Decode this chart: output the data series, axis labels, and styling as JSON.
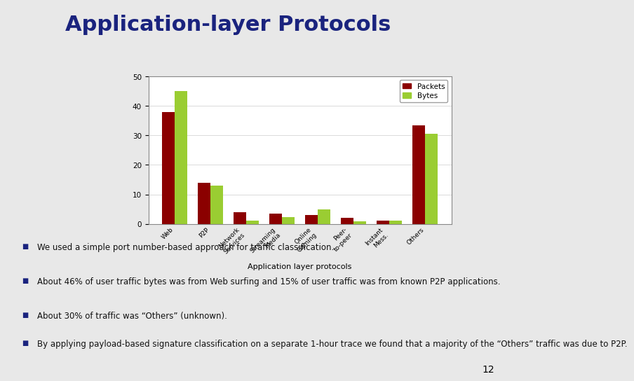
{
  "title": "Application-layer Protocols",
  "slide_bg": "#e8e8e8",
  "title_color": "#1a237e",
  "title_fontsize": 22,
  "xlabel": "Application layer protocols",
  "ylabel": "",
  "ylim": [
    0,
    50
  ],
  "yticks": [
    0,
    10,
    20,
    30,
    40,
    50
  ],
  "categories": [
    "Web",
    "P2P",
    "Network\nServices",
    "Streaming\nMedia",
    "Online\nGaming",
    "Peer-\nto-peer",
    "Instant\nMess.",
    "Others"
  ],
  "packets": [
    38,
    14,
    4,
    3.5,
    3,
    2,
    1,
    33.5
  ],
  "bytes": [
    45,
    13,
    1.2,
    2.2,
    4.8,
    0.8,
    1.2,
    30.5
  ],
  "packets_color": "#8B0000",
  "bytes_color": "#9ACD32",
  "legend_packets": "Packets",
  "legend_bytes": "Bytes",
  "bullet_points": [
    "We used a simple port number-based approach for traffic classification.",
    "About 46% of user traffic bytes was from Web surfing and 15% of user traffic was from known P2P applications.",
    "About 30% of traffic was “Others” (unknown).",
    "By applying payload-based signature classification on a separate 1-hour trace we found that a majority of the “Others” traffic was due to P2P."
  ],
  "bullet_fontsize": 8.5,
  "page_number": "12",
  "bar_width": 0.35,
  "deco_yellow": "#FFD700",
  "deco_red": "#CC2200",
  "deco_blue": "#1A3A8F"
}
